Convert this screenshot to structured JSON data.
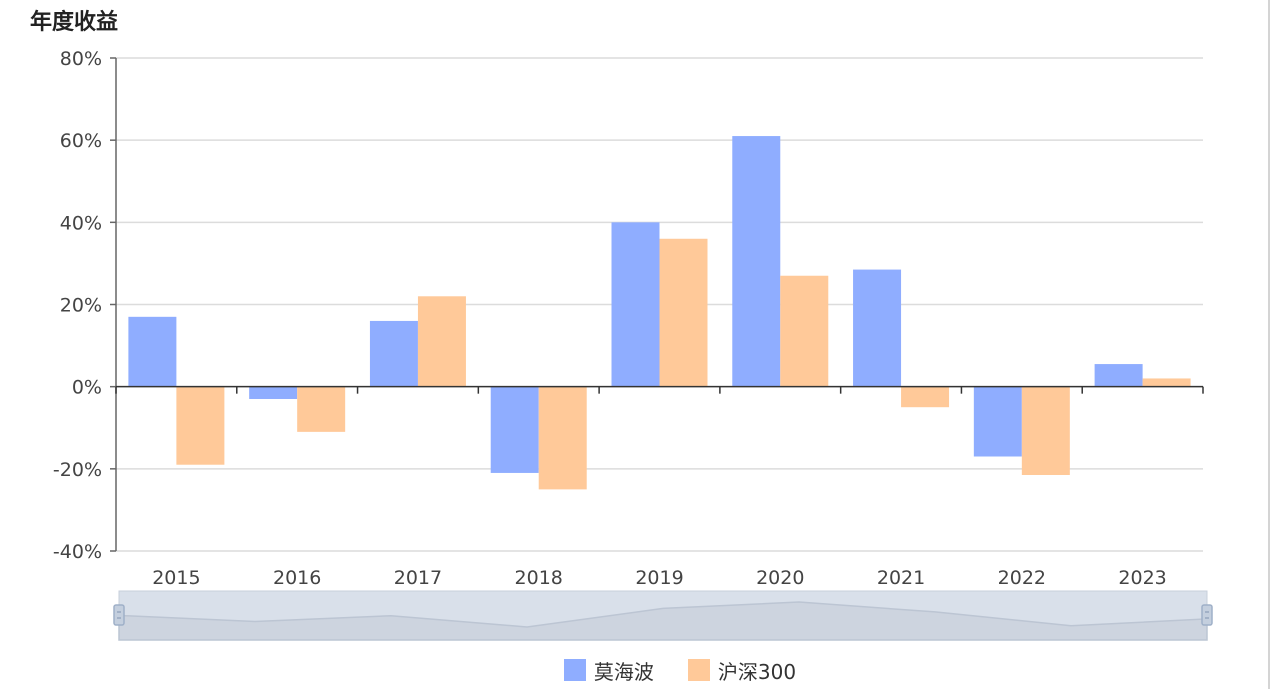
{
  "chart_data": {
    "type": "bar",
    "title": "年度收益",
    "categories": [
      "2015",
      "2016",
      "2017",
      "2018",
      "2019",
      "2020",
      "2021",
      "2022",
      "2023"
    ],
    "series": [
      {
        "name": "莫海波",
        "values": [
          17,
          -3,
          16,
          -21,
          40,
          61,
          28.5,
          -17,
          5.5
        ],
        "color": "#8fadff"
      },
      {
        "name": "沪深300",
        "values": [
          -19,
          -11,
          22,
          -25,
          36,
          27,
          -5,
          -21.5,
          2
        ],
        "color": "#ffc999"
      }
    ],
    "yticks": [
      "80%",
      "60%",
      "40%",
      "20%",
      "0%",
      "-20%",
      "-40%"
    ],
    "ylim": [
      -40,
      80
    ],
    "grid": true,
    "legend_position": "bottom-center",
    "zoom_slider": true
  }
}
